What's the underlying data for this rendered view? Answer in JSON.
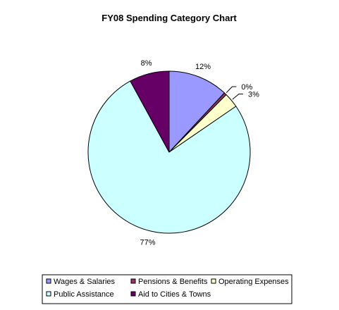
{
  "chart_data": {
    "type": "pie",
    "title": "FY08 Spending Category Chart",
    "slices": [
      {
        "label": "Wages & Salaries",
        "value": 12,
        "display": "12%",
        "color": "#9999ff"
      },
      {
        "label": "Pensions & Benefits",
        "value": 0.5,
        "display": "0%",
        "color": "#993366"
      },
      {
        "label": "Operating Expenses",
        "value": 3,
        "display": "3%",
        "color": "#ffffcc"
      },
      {
        "label": "Public Assistance",
        "value": 77,
        "display": "77%",
        "color": "#ccffff"
      },
      {
        "label": "Aid to Cities & Towns",
        "value": 8,
        "display": "8%",
        "color": "#660066"
      }
    ],
    "legend_position": "bottom"
  }
}
